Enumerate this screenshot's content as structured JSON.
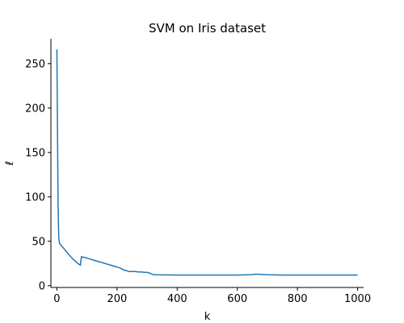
{
  "chart_data": {
    "type": "line",
    "title": "SVM on Iris dataset",
    "xlabel": "k",
    "ylabel": "ℓ",
    "xlim": [
      -20,
      1020
    ],
    "ylim": [
      -2,
      278
    ],
    "xticks": [
      0,
      200,
      400,
      600,
      800,
      1000
    ],
    "yticks": [
      0,
      50,
      100,
      150,
      200,
      250
    ],
    "grid": false,
    "legend": "none",
    "spines": "left-bottom",
    "series": [
      {
        "color": "#1f77b4",
        "x": [
          0,
          2,
          4,
          6,
          8,
          10,
          15,
          20,
          30,
          40,
          50,
          60,
          70,
          78,
          80,
          82,
          85,
          90,
          100,
          110,
          120,
          130,
          140,
          150,
          160,
          170,
          180,
          190,
          200,
          210,
          220,
          230,
          240,
          250,
          260,
          270,
          280,
          290,
          300,
          310,
          320,
          330,
          350,
          400,
          450,
          500,
          550,
          600,
          650,
          660,
          700,
          750,
          800,
          850,
          900,
          950,
          1000
        ],
        "y": [
          266,
          170,
          90,
          55,
          49,
          47,
          45,
          43,
          39,
          35,
          31,
          28,
          25,
          23,
          29,
          33,
          32,
          32,
          31,
          30,
          29,
          28,
          27,
          26,
          25,
          24,
          23,
          22,
          21,
          20,
          18,
          17,
          16,
          16,
          16,
          15.5,
          15.5,
          15,
          15,
          14,
          12.5,
          12.3,
          12.2,
          12.0,
          12.0,
          12.0,
          12.0,
          12.0,
          12.5,
          13,
          12.3,
          12.0,
          12.0,
          12.0,
          12.0,
          12.0,
          12.0
        ]
      }
    ]
  }
}
